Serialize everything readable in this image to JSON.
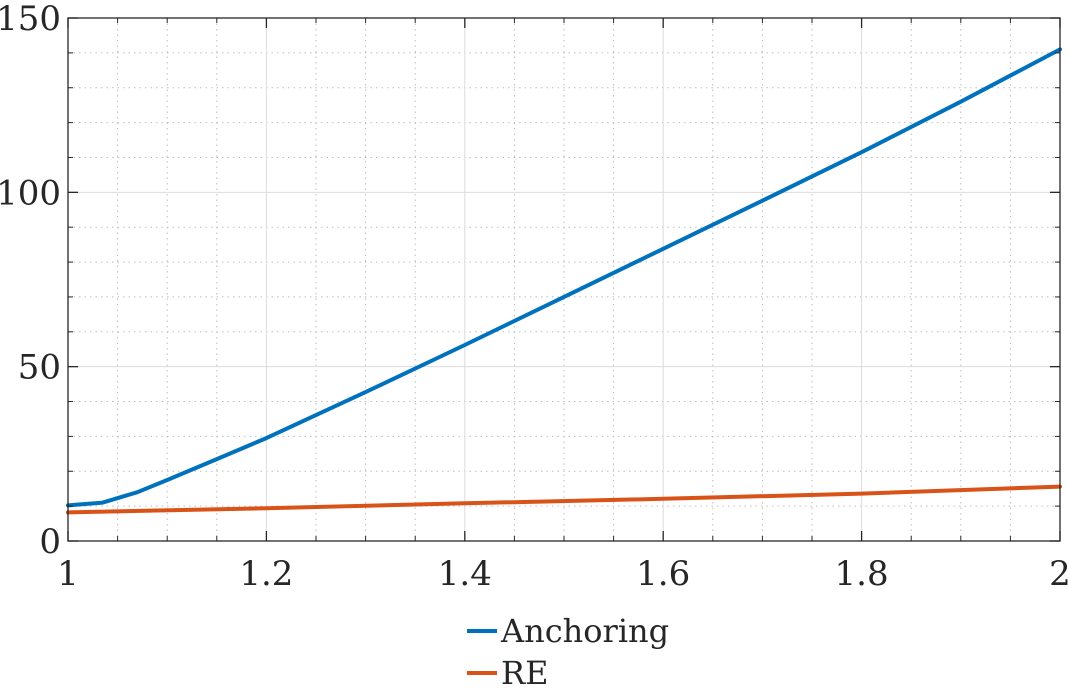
{
  "chart_data": {
    "type": "line",
    "title": "",
    "xlabel": "",
    "ylabel": "",
    "xlim": [
      1,
      2
    ],
    "ylim": [
      0,
      150
    ],
    "x_ticks": [
      1,
      1.2,
      1.4,
      1.6,
      1.8,
      2
    ],
    "x_tick_labels": [
      "1",
      "1.2",
      "1.4",
      "1.6",
      "1.8",
      "2"
    ],
    "y_ticks": [
      0,
      50,
      100,
      150
    ],
    "y_tick_labels": [
      "0",
      "50",
      "100",
      "150"
    ],
    "grid": true,
    "minor_grid": true,
    "legend_position": "bottom-center",
    "series": [
      {
        "name": "Anchoring",
        "color": "#0072BD",
        "x": [
          1.0,
          1.035,
          1.07,
          1.1,
          1.15,
          1.2,
          1.3,
          1.4,
          1.5,
          1.6,
          1.7,
          1.8,
          1.9,
          2.0
        ],
        "y": [
          10.2,
          11.0,
          14.0,
          17.5,
          23.5,
          29.5,
          42.7,
          56.2,
          70.0,
          83.8,
          97.6,
          111.5,
          126.0,
          141.0
        ]
      },
      {
        "name": "RE",
        "color": "#D95319",
        "x": [
          1.0,
          1.2,
          1.4,
          1.6,
          1.8,
          2.0
        ],
        "y": [
          8.2,
          9.4,
          10.8,
          12.1,
          13.6,
          15.6
        ]
      }
    ]
  }
}
